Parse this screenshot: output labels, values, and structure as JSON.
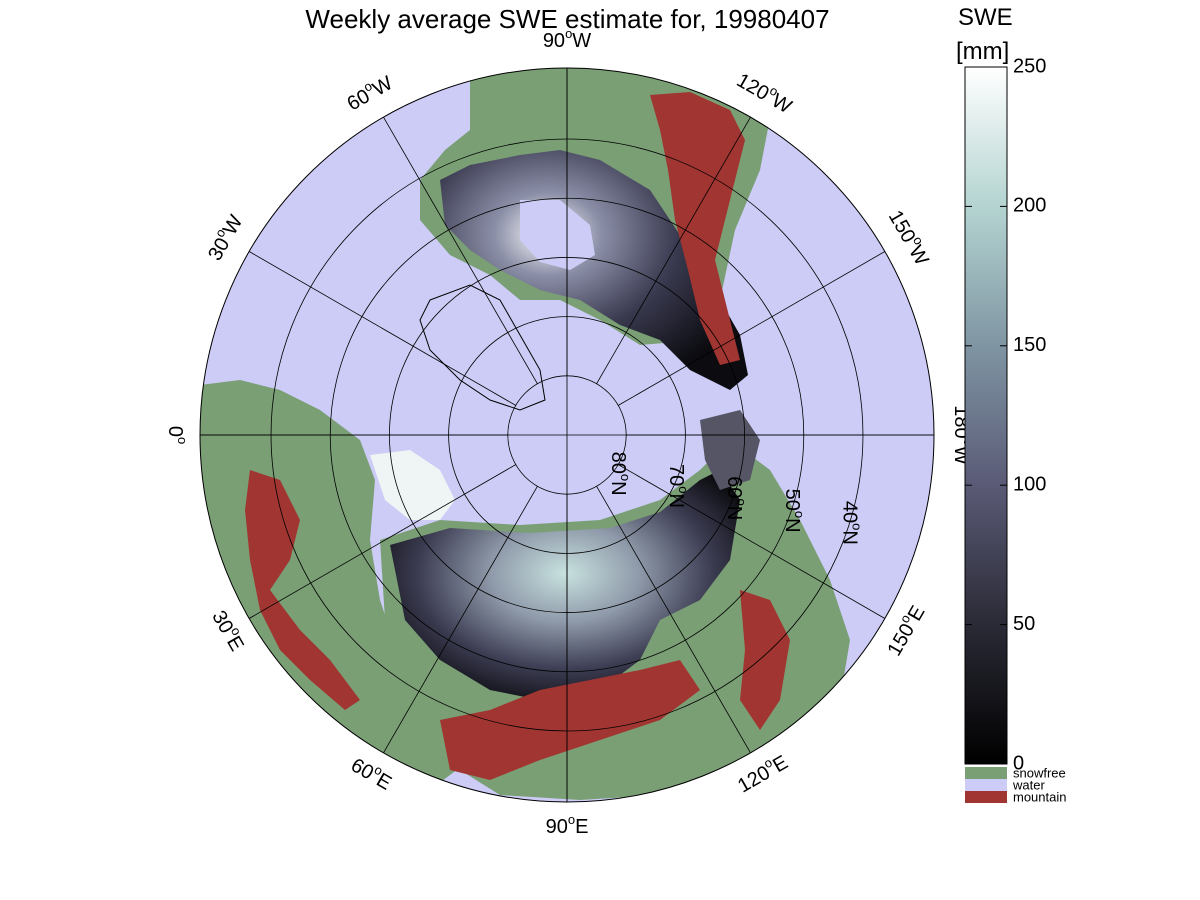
{
  "title": "Weekly average SWE estimate for, 19980407",
  "colorbar": {
    "title": "SWE",
    "unit": "[mm]",
    "ticks": [
      "0",
      "50",
      "100",
      "150",
      "200",
      "250"
    ],
    "range": [
      0,
      250
    ],
    "categories": [
      {
        "label": "snowfree",
        "color": "#7a9f75"
      },
      {
        "label": "water",
        "color": "#ccccf6"
      },
      {
        "label": "mountain",
        "color": "#a13531"
      }
    ]
  },
  "map": {
    "projection": "north polar stereographic",
    "longitude_labels": [
      {
        "label": "90",
        "suffix": "W",
        "lon": -90
      },
      {
        "label": "60",
        "suffix": "W",
        "lon": -60
      },
      {
        "label": "30",
        "suffix": "W",
        "lon": -30
      },
      {
        "label": "0",
        "suffix": "",
        "lon": 0
      },
      {
        "label": "30",
        "suffix": "E",
        "lon": 30
      },
      {
        "label": "60",
        "suffix": "E",
        "lon": 60
      },
      {
        "label": "90",
        "suffix": "E",
        "lon": 90
      },
      {
        "label": "120",
        "suffix": "E",
        "lon": 120
      },
      {
        "label": "150",
        "suffix": "E",
        "lon": 150
      },
      {
        "label": "180",
        "suffix": "W",
        "lon": 180
      },
      {
        "label": "150",
        "suffix": "W",
        "lon": -150
      },
      {
        "label": "120",
        "suffix": "W",
        "lon": -120
      }
    ],
    "latitude_labels": [
      "80",
      "70",
      "60",
      "50",
      "40"
    ],
    "lat_suffix": "N",
    "degree_symbol": "o",
    "colors": {
      "water": "#ccccf6",
      "snowfree": "#7a9f75",
      "mountain": "#a13531",
      "snow_low": "#0a0a0e",
      "snow_mid": "#5a5a7a",
      "snow_high": "#c8e2df",
      "snow_max": "#ffffff"
    }
  }
}
